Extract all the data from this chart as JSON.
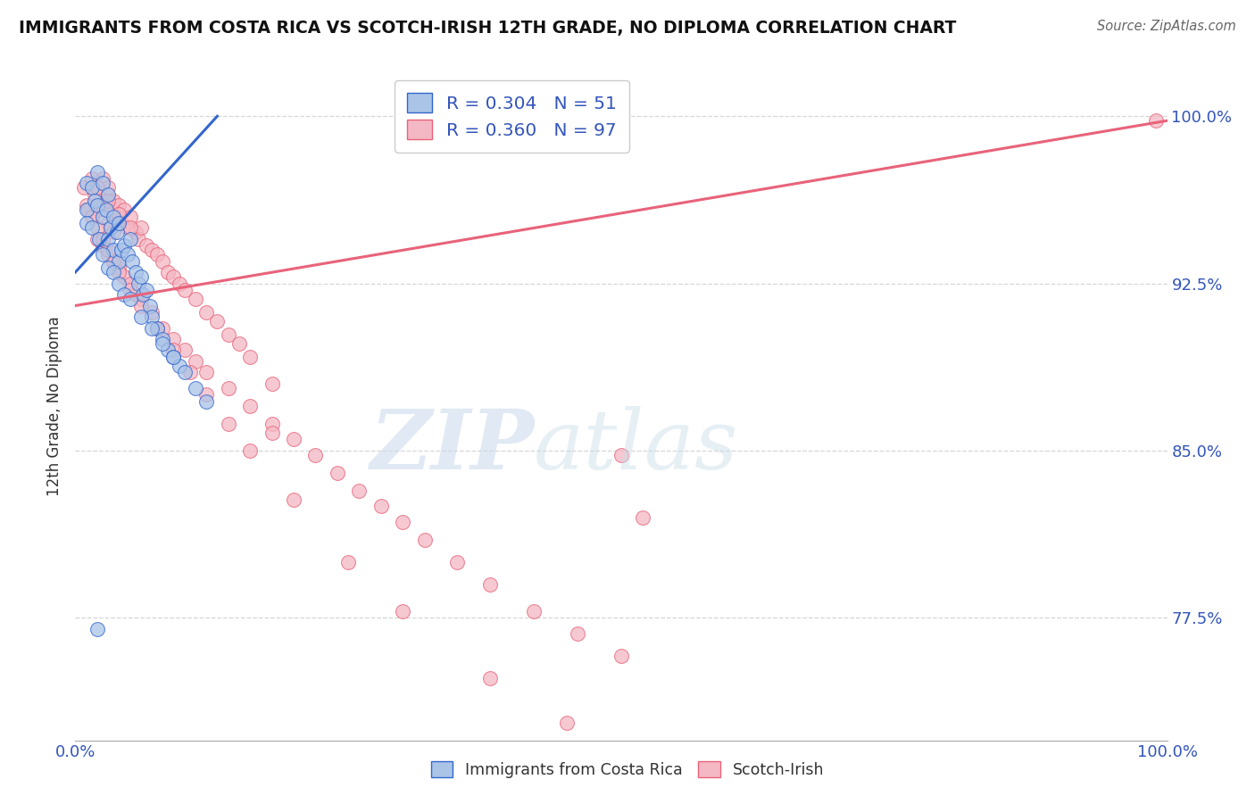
{
  "title": "IMMIGRANTS FROM COSTA RICA VS SCOTCH-IRISH 12TH GRADE, NO DIPLOMA CORRELATION CHART",
  "source": "Source: ZipAtlas.com",
  "ylabel": "12th Grade, No Diploma",
  "legend_label1": "Immigrants from Costa Rica",
  "legend_label2": "Scotch-Irish",
  "r1": 0.304,
  "n1": 51,
  "r2": 0.36,
  "n2": 97,
  "color1": "#aac4e8",
  "color2": "#f4b8c4",
  "trendline_color1": "#3366CC",
  "trendline_color2": "#e8637a",
  "xmin": 0.0,
  "xmax": 1.0,
  "ymin": 0.72,
  "ymax": 1.02,
  "x_tick_labels": [
    "0.0%",
    "100.0%"
  ],
  "y_tick_labels": [
    "77.5%",
    "85.0%",
    "92.5%",
    "100.0%"
  ],
  "y_tick_values": [
    0.775,
    0.85,
    0.925,
    1.0
  ],
  "blue_dots_x": [
    0.01,
    0.01,
    0.01,
    0.015,
    0.015,
    0.018,
    0.02,
    0.02,
    0.022,
    0.025,
    0.025,
    0.028,
    0.03,
    0.03,
    0.032,
    0.035,
    0.035,
    0.038,
    0.04,
    0.04,
    0.042,
    0.045,
    0.048,
    0.05,
    0.052,
    0.055,
    0.058,
    0.06,
    0.062,
    0.065,
    0.068,
    0.07,
    0.075,
    0.08,
    0.085,
    0.09,
    0.095,
    0.1,
    0.11,
    0.12,
    0.025,
    0.03,
    0.035,
    0.04,
    0.045,
    0.05,
    0.06,
    0.07,
    0.08,
    0.09,
    0.02
  ],
  "blue_dots_y": [
    0.97,
    0.958,
    0.952,
    0.968,
    0.95,
    0.962,
    0.975,
    0.96,
    0.945,
    0.97,
    0.955,
    0.958,
    0.965,
    0.945,
    0.95,
    0.955,
    0.94,
    0.948,
    0.952,
    0.935,
    0.94,
    0.942,
    0.938,
    0.945,
    0.935,
    0.93,
    0.925,
    0.928,
    0.92,
    0.922,
    0.915,
    0.91,
    0.905,
    0.9,
    0.895,
    0.892,
    0.888,
    0.885,
    0.878,
    0.872,
    0.938,
    0.932,
    0.93,
    0.925,
    0.92,
    0.918,
    0.91,
    0.905,
    0.898,
    0.892,
    0.77
  ],
  "pink_dots_x": [
    0.008,
    0.01,
    0.012,
    0.015,
    0.015,
    0.018,
    0.02,
    0.022,
    0.025,
    0.025,
    0.028,
    0.03,
    0.03,
    0.032,
    0.035,
    0.035,
    0.038,
    0.04,
    0.042,
    0.045,
    0.048,
    0.05,
    0.055,
    0.058,
    0.06,
    0.065,
    0.07,
    0.075,
    0.08,
    0.085,
    0.09,
    0.095,
    0.1,
    0.11,
    0.12,
    0.13,
    0.14,
    0.15,
    0.16,
    0.18,
    0.02,
    0.025,
    0.03,
    0.035,
    0.04,
    0.045,
    0.05,
    0.055,
    0.06,
    0.07,
    0.08,
    0.09,
    0.1,
    0.11,
    0.12,
    0.14,
    0.16,
    0.18,
    0.2,
    0.22,
    0.24,
    0.26,
    0.28,
    0.3,
    0.32,
    0.35,
    0.38,
    0.42,
    0.46,
    0.5,
    0.015,
    0.02,
    0.025,
    0.03,
    0.035,
    0.04,
    0.05,
    0.06,
    0.075,
    0.09,
    0.105,
    0.12,
    0.14,
    0.16,
    0.2,
    0.25,
    0.3,
    0.38,
    0.45,
    0.52,
    0.18,
    0.02,
    0.03,
    0.04,
    0.05,
    0.5,
    0.99
  ],
  "pink_dots_y": [
    0.968,
    0.96,
    0.958,
    0.972,
    0.955,
    0.965,
    0.968,
    0.958,
    0.972,
    0.96,
    0.962,
    0.968,
    0.952,
    0.958,
    0.962,
    0.948,
    0.955,
    0.96,
    0.952,
    0.958,
    0.95,
    0.955,
    0.948,
    0.945,
    0.95,
    0.942,
    0.94,
    0.938,
    0.935,
    0.93,
    0.928,
    0.925,
    0.922,
    0.918,
    0.912,
    0.908,
    0.902,
    0.898,
    0.892,
    0.88,
    0.945,
    0.942,
    0.938,
    0.935,
    0.932,
    0.928,
    0.925,
    0.92,
    0.918,
    0.912,
    0.905,
    0.9,
    0.895,
    0.89,
    0.885,
    0.878,
    0.87,
    0.862,
    0.855,
    0.848,
    0.84,
    0.832,
    0.825,
    0.818,
    0.81,
    0.8,
    0.79,
    0.778,
    0.768,
    0.758,
    0.955,
    0.95,
    0.945,
    0.94,
    0.935,
    0.93,
    0.922,
    0.915,
    0.905,
    0.895,
    0.885,
    0.875,
    0.862,
    0.85,
    0.828,
    0.8,
    0.778,
    0.748,
    0.728,
    0.82,
    0.858,
    0.968,
    0.962,
    0.956,
    0.95,
    0.848,
    0.998
  ]
}
